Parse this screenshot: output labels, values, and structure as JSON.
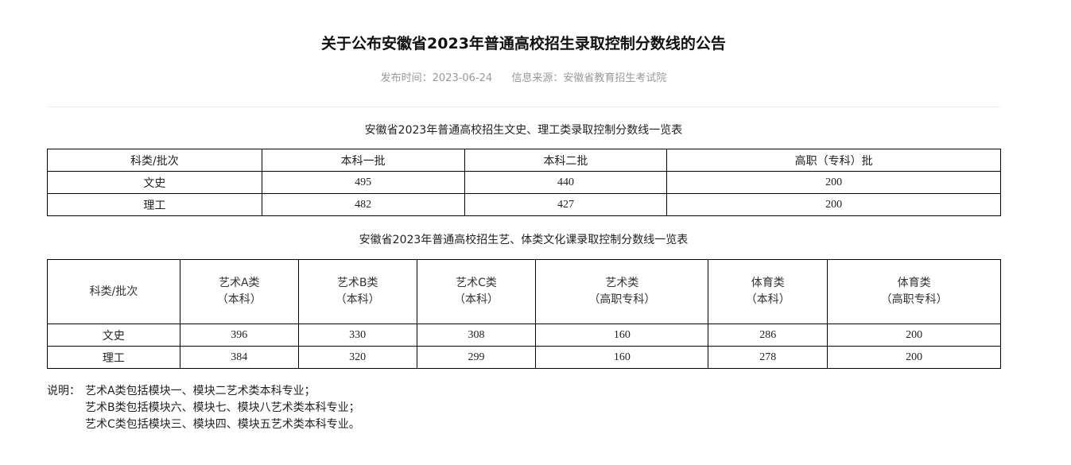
{
  "title": "关于公布安徽省2023年普通高校招生录取控制分数线的公告",
  "meta": {
    "publish": "发布时间：2023-06-24",
    "source": "信息来源：安徽省教育招生考试院"
  },
  "table1": {
    "caption": "安徽省2023年普通高校招生文史、理工类录取控制分数线一览表",
    "headers": [
      "科类/批次",
      "本科一批",
      "本科二批",
      "高职（专科）批"
    ],
    "rows": [
      [
        "文史",
        "495",
        "440",
        "200"
      ],
      [
        "理工",
        "482",
        "427",
        "200"
      ]
    ]
  },
  "table2": {
    "caption": "安徽省2023年普通高校招生艺、体类文化课录取控制分数线一览表",
    "headers": [
      [
        "科类/批次",
        ""
      ],
      [
        "艺术A类",
        "（本科）"
      ],
      [
        "艺术B类",
        "（本科）"
      ],
      [
        "艺术C类",
        "（本科）"
      ],
      [
        "艺术类",
        "（高职专科）"
      ],
      [
        "体育类",
        "（本科）"
      ],
      [
        "体育类",
        "（高职专科）"
      ]
    ],
    "rows": [
      [
        "文史",
        "396",
        "330",
        "308",
        "160",
        "286",
        "200"
      ],
      [
        "理工",
        "384",
        "320",
        "299",
        "160",
        "278",
        "200"
      ]
    ]
  },
  "notes": {
    "label": "说明：",
    "lines": [
      "艺术A类包括模块一、模块二艺术类本科专业；",
      "艺术B类包括模块六、模块七、模块八艺术类本科专业；",
      "艺术C类包括模块三、模块四、模块五艺术类本科专业。"
    ]
  }
}
